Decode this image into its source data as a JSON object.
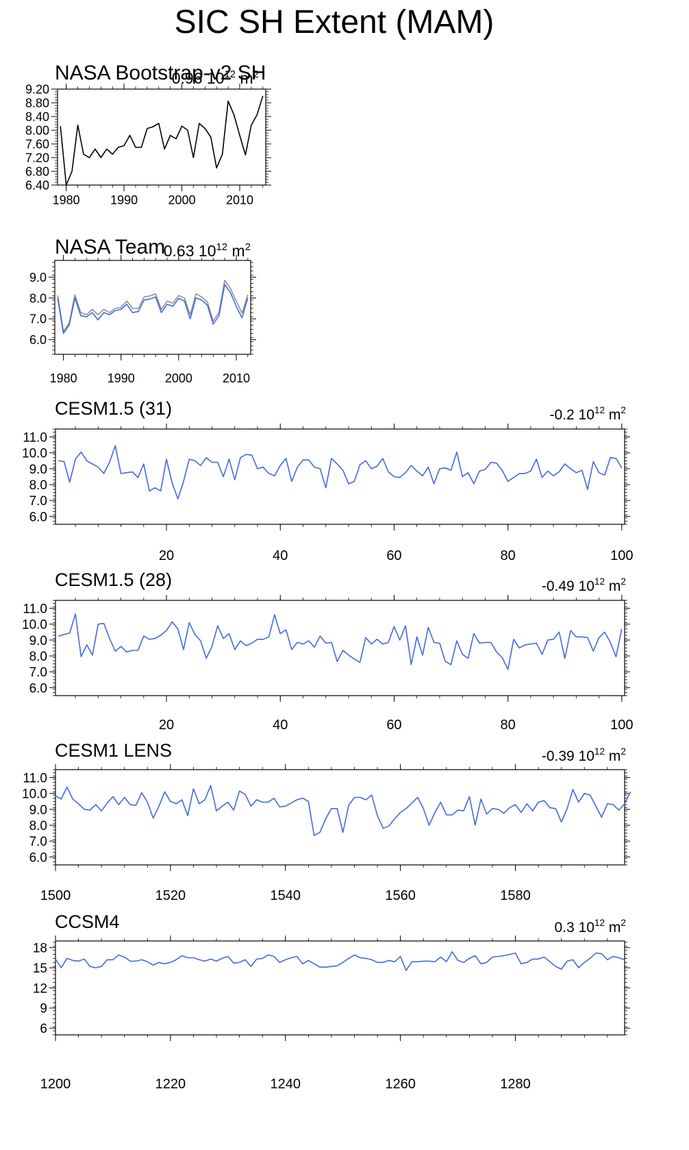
{
  "page": {
    "title": "SIC SH Extent (MAM)"
  },
  "chart_data": [
    {
      "type": "line",
      "panel_title": "NASA Bootstrap-v2 SH",
      "trend_value": "0.96",
      "trend_unit_base": "10",
      "trend_unit_exp": "12",
      "trend_unit_suffix": "m",
      "trend_unit_suffix_exp": "2",
      "ylim": [
        6.4,
        9.2
      ],
      "yticks": [
        6.4,
        6.8,
        7.2,
        7.6,
        8.0,
        8.4,
        8.8,
        9.2
      ],
      "ytick_labels": [
        "6.40",
        "6.80",
        "7.20",
        "7.60",
        "8.00",
        "8.40",
        "8.80",
        "9.20"
      ],
      "xlim": [
        1978.5,
        2014.5
      ],
      "xticks": [
        1980,
        1990,
        2000,
        2010
      ],
      "xtick_labels": [
        "1980",
        "1990",
        "2000",
        "2010"
      ],
      "series": [
        {
          "color": "#000000",
          "x": [
            1979,
            1980,
            1981,
            1982,
            1983,
            1984,
            1985,
            1986,
            1987,
            1988,
            1989,
            1990,
            1991,
            1992,
            1993,
            1994,
            1995,
            1996,
            1997,
            1998,
            1999,
            2000,
            2001,
            2002,
            2003,
            2004,
            2005,
            2006,
            2007,
            2008,
            2009,
            2010,
            2011,
            2012,
            2013,
            2014
          ],
          "values": [
            8.12,
            6.4,
            6.8,
            8.15,
            7.3,
            7.2,
            7.45,
            7.2,
            7.45,
            7.3,
            7.5,
            7.55,
            7.85,
            7.5,
            7.5,
            8.05,
            8.1,
            8.2,
            7.45,
            7.85,
            7.75,
            8.12,
            8.0,
            7.2,
            8.2,
            8.05,
            7.8,
            6.9,
            7.3,
            8.85,
            8.45,
            7.85,
            7.28,
            8.15,
            8.45,
            9.0
          ]
        }
      ]
    },
    {
      "type": "line",
      "panel_title": "NASA Team",
      "trend_value": "0.63",
      "trend_unit_base": "10",
      "trend_unit_exp": "12",
      "trend_unit_suffix": "m",
      "trend_unit_suffix_exp": "2",
      "ylim": [
        5.3,
        9.8
      ],
      "yticks": [
        6.0,
        7.0,
        8.0,
        9.0
      ],
      "ytick_labels": [
        "6.0",
        "7.0",
        "8.0",
        "9.0"
      ],
      "xlim": [
        1978.5,
        2012.5
      ],
      "xticks": [
        1980,
        1990,
        2000,
        2010
      ],
      "xtick_labels": [
        "1980",
        "1990",
        "2000",
        "2010"
      ],
      "series": [
        {
          "color": "#909090",
          "x": [
            1979,
            1980,
            1981,
            1982,
            1983,
            1984,
            1985,
            1986,
            1987,
            1988,
            1989,
            1990,
            1991,
            1992,
            1993,
            1994,
            1995,
            1996,
            1997,
            1998,
            1999,
            2000,
            2001,
            2002,
            2003,
            2004,
            2005,
            2006,
            2007,
            2008,
            2009,
            2010,
            2011,
            2012
          ],
          "values": [
            8.12,
            6.4,
            6.8,
            8.15,
            7.3,
            7.2,
            7.45,
            7.2,
            7.45,
            7.3,
            7.5,
            7.55,
            7.85,
            7.5,
            7.5,
            8.05,
            8.1,
            8.2,
            7.45,
            7.85,
            7.75,
            8.12,
            8.0,
            7.2,
            8.2,
            8.05,
            7.8,
            6.9,
            7.3,
            8.85,
            8.45,
            7.85,
            7.28,
            8.15
          ]
        },
        {
          "color": "#4169e1",
          "x": [
            1979,
            1980,
            1981,
            1982,
            1983,
            1984,
            1985,
            1986,
            1987,
            1988,
            1989,
            1990,
            1991,
            1992,
            1993,
            1994,
            1995,
            1996,
            1997,
            1998,
            1999,
            2000,
            2001,
            2002,
            2003,
            2004,
            2005,
            2006,
            2007,
            2008,
            2009,
            2010,
            2011,
            2012
          ],
          "values": [
            8.0,
            6.3,
            6.7,
            8.0,
            7.15,
            7.1,
            7.3,
            6.95,
            7.3,
            7.2,
            7.4,
            7.45,
            7.7,
            7.3,
            7.35,
            7.9,
            7.95,
            8.05,
            7.3,
            7.7,
            7.6,
            7.98,
            7.85,
            7.0,
            8.0,
            7.9,
            7.65,
            6.75,
            7.15,
            8.65,
            8.25,
            7.6,
            7.05,
            8.0
          ]
        }
      ]
    },
    {
      "type": "line",
      "panel_title": "CESM1.5 (31)",
      "trend_value": "-0.2",
      "trend_unit_base": "10",
      "trend_unit_exp": "12",
      "trend_unit_suffix": "m",
      "trend_unit_suffix_exp": "2",
      "ylim": [
        5.5,
        11.5
      ],
      "yticks": [
        6.0,
        7.0,
        8.0,
        9.0,
        10.0,
        11.0
      ],
      "ytick_labels": [
        "6.0",
        "7.0",
        "8.0",
        "9.0",
        "10.0",
        "11.0"
      ],
      "xlim": [
        0.5,
        100.5
      ],
      "xticks": [
        20,
        40,
        60,
        80,
        100
      ],
      "xtick_labels": [
        "20",
        "40",
        "60",
        "80",
        "100"
      ],
      "series": [
        {
          "color": "#4169e1",
          "x_start": 1,
          "x_step": 1,
          "values": [
            9.5,
            9.45,
            8.15,
            9.6,
            10.05,
            9.5,
            9.3,
            9.1,
            8.7,
            9.4,
            10.45,
            8.7,
            8.75,
            8.8,
            8.45,
            9.3,
            7.6,
            7.8,
            7.6,
            9.6,
            8.1,
            7.1,
            8.2,
            9.6,
            9.5,
            9.2,
            9.7,
            9.4,
            9.4,
            8.5,
            9.6,
            8.3,
            9.7,
            9.9,
            9.85,
            9.0,
            9.1,
            8.7,
            8.55,
            9.2,
            9.65,
            8.2,
            9.1,
            9.55,
            9.55,
            9.1,
            9.0,
            7.8,
            9.65,
            9.3,
            8.9,
            8.05,
            8.2,
            9.25,
            9.5,
            9.0,
            9.15,
            9.65,
            8.8,
            8.5,
            8.45,
            8.75,
            9.2,
            8.85,
            8.55,
            9.1,
            8.05,
            9.0,
            9.05,
            8.9,
            10.05,
            8.5,
            8.75,
            8.05,
            8.85,
            8.95,
            9.4,
            9.35,
            8.9,
            8.2,
            8.45,
            8.7,
            8.7,
            8.85,
            9.6,
            8.45,
            8.85,
            8.55,
            8.8,
            9.3,
            9.0,
            8.75,
            8.9,
            7.7,
            9.45,
            8.75,
            8.6,
            9.7,
            9.65,
            9.05
          ]
        }
      ]
    },
    {
      "type": "line",
      "panel_title": "CESM1.5 (28)",
      "trend_value": "-0.49",
      "trend_unit_base": "10",
      "trend_unit_exp": "12",
      "trend_unit_suffix": "m",
      "trend_unit_suffix_exp": "2",
      "ylim": [
        5.5,
        11.5
      ],
      "yticks": [
        6.0,
        7.0,
        8.0,
        9.0,
        10.0,
        11.0
      ],
      "ytick_labels": [
        "6.0",
        "7.0",
        "8.0",
        "9.0",
        "10.0",
        "11.0"
      ],
      "xlim": [
        0.5,
        100.5
      ],
      "xticks": [
        20,
        40,
        60,
        80,
        100
      ],
      "xtick_labels": [
        "20",
        "40",
        "60",
        "80",
        "100"
      ],
      "series": [
        {
          "color": "#4169e1",
          "x_start": 1,
          "x_step": 1,
          "values": [
            9.25,
            9.35,
            9.45,
            10.65,
            7.95,
            8.7,
            8.05,
            10.0,
            10.05,
            9.1,
            8.3,
            8.6,
            8.25,
            8.35,
            8.35,
            9.25,
            9.05,
            9.1,
            9.3,
            9.6,
            10.15,
            9.7,
            8.4,
            10.1,
            9.35,
            8.95,
            7.85,
            8.6,
            9.9,
            9.1,
            9.4,
            8.4,
            8.95,
            8.65,
            8.8,
            9.05,
            9.05,
            9.2,
            10.6,
            9.4,
            9.65,
            8.4,
            8.85,
            8.75,
            8.95,
            8.55,
            9.25,
            8.8,
            8.85,
            7.65,
            8.35,
            8.05,
            7.8,
            7.6,
            9.15,
            8.75,
            9.05,
            8.75,
            8.85,
            9.85,
            9.0,
            9.9,
            7.45,
            9.2,
            8.05,
            9.8,
            8.85,
            8.8,
            7.65,
            7.45,
            8.95,
            8.1,
            7.85,
            9.4,
            8.8,
            8.85,
            8.85,
            8.25,
            7.9,
            7.15,
            9.05,
            8.5,
            8.7,
            8.75,
            8.8,
            8.1,
            9.0,
            9.05,
            9.5,
            7.85,
            9.6,
            9.2,
            9.2,
            9.15,
            8.3,
            9.15,
            9.5,
            8.85,
            7.95,
            9.7
          ]
        }
      ]
    },
    {
      "type": "line",
      "panel_title": "CESM1 LENS",
      "trend_value": "-0.39",
      "trend_unit_base": "10",
      "trend_unit_exp": "12",
      "trend_unit_suffix": "m",
      "trend_unit_suffix_exp": "2",
      "ylim": [
        5.5,
        11.5
      ],
      "yticks": [
        6.0,
        7.0,
        8.0,
        9.0,
        10.0,
        11.0
      ],
      "ytick_labels": [
        "6.0",
        "7.0",
        "8.0",
        "9.0",
        "10.0",
        "11.0"
      ],
      "xlim": [
        1500,
        1599
      ],
      "xticks": [
        1500,
        1520,
        1540,
        1560,
        1580
      ],
      "xtick_labels": [
        "1500",
        "1520",
        "1540",
        "1560",
        "1580"
      ],
      "series": [
        {
          "color": "#4169e1",
          "x_start": 1500,
          "x_step": 1,
          "values": [
            9.85,
            9.65,
            10.4,
            9.65,
            9.35,
            9.0,
            8.95,
            9.3,
            8.9,
            9.4,
            9.8,
            9.3,
            9.75,
            9.3,
            9.25,
            10.05,
            9.45,
            8.45,
            9.2,
            10.1,
            9.5,
            9.35,
            9.6,
            8.6,
            10.3,
            9.35,
            9.6,
            10.5,
            8.9,
            9.2,
            9.45,
            8.95,
            10.15,
            9.95,
            9.2,
            9.6,
            9.45,
            9.45,
            9.7,
            9.15,
            9.2,
            9.4,
            9.6,
            9.7,
            9.5,
            7.35,
            7.55,
            8.4,
            9.05,
            9.05,
            7.55,
            9.25,
            9.75,
            9.75,
            9.6,
            9.9,
            8.6,
            7.8,
            7.95,
            8.4,
            8.8,
            9.05,
            9.4,
            9.75,
            9.05,
            8.0,
            8.8,
            9.45,
            8.65,
            8.65,
            8.95,
            8.9,
            9.8,
            8.0,
            9.65,
            8.7,
            9.05,
            9.0,
            8.75,
            9.1,
            9.3,
            8.8,
            9.35,
            8.9,
            9.45,
            9.55,
            9.1,
            9.05,
            8.2,
            9.05,
            10.25,
            9.45,
            10.0,
            9.9,
            9.2,
            8.5,
            9.35,
            9.3,
            8.95,
            9.35,
            10.1
          ]
        }
      ]
    },
    {
      "type": "line",
      "panel_title": "CCSM4",
      "trend_value": "0.3",
      "trend_unit_base": "10",
      "trend_unit_exp": "12",
      "trend_unit_suffix": "m",
      "trend_unit_suffix_exp": "2",
      "ylim": [
        5.0,
        19.0
      ],
      "yticks": [
        6,
        9,
        12,
        15,
        18
      ],
      "ytick_labels": [
        "6",
        "9",
        "12",
        "15",
        "18"
      ],
      "xlim": [
        1200,
        1299
      ],
      "xticks": [
        1200,
        1220,
        1240,
        1260,
        1280
      ],
      "xtick_labels": [
        "1200",
        "1220",
        "1240",
        "1260",
        "1280"
      ],
      "series": [
        {
          "color": "#4169e1",
          "x_start": 1200,
          "x_step": 1,
          "values": [
            16.3,
            15.0,
            16.4,
            16.1,
            16.0,
            16.3,
            15.2,
            15.0,
            15.2,
            16.2,
            16.2,
            16.9,
            16.6,
            16.0,
            16.0,
            16.2,
            15.9,
            15.4,
            15.8,
            15.6,
            15.8,
            16.2,
            16.8,
            16.5,
            16.5,
            16.2,
            16.0,
            16.3,
            16.0,
            16.4,
            16.7,
            15.7,
            15.8,
            16.2,
            15.2,
            16.3,
            16.4,
            16.9,
            16.7,
            15.8,
            16.2,
            16.5,
            16.7,
            15.6,
            16.1,
            15.6,
            15.1,
            15.1,
            15.2,
            15.3,
            15.8,
            16.4,
            16.9,
            16.5,
            16.4,
            16.2,
            15.8,
            15.8,
            16.1,
            15.9,
            16.7,
            14.6,
            15.9,
            15.9,
            16.0,
            16.0,
            15.9,
            16.6,
            15.9,
            17.4,
            16.1,
            15.8,
            16.4,
            16.8,
            15.6,
            15.8,
            16.6,
            16.7,
            16.8,
            17.0,
            17.2,
            15.6,
            15.8,
            16.3,
            16.3,
            16.6,
            15.9,
            15.2,
            14.8,
            16.0,
            16.2,
            15.0,
            15.8,
            16.4,
            17.2,
            17.1,
            16.2,
            16.7,
            16.5,
            16.2
          ]
        }
      ]
    }
  ]
}
